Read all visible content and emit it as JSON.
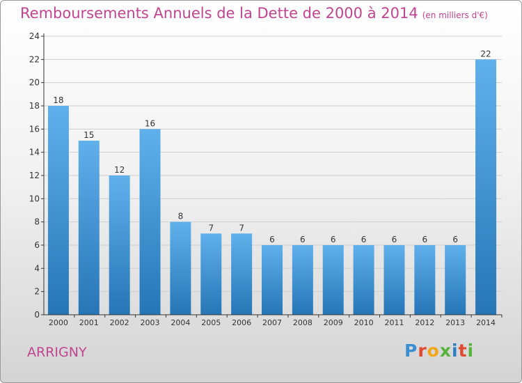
{
  "header": {
    "title": "Remboursements Annuels de la Dette de 2000 à 2014",
    "subtitle": "(en milliers d'€)"
  },
  "footer": {
    "commune": "ARRIGNY",
    "logo_text": "Proxiti",
    "logo_colors": [
      "#3b8fd1",
      "#e2472f",
      "#f2a51a",
      "#57b33c",
      "#2b7ec4",
      "#e2472f",
      "#57b33c"
    ]
  },
  "colors": {
    "title": "#c0448f",
    "bar_top": "#5fb0eb",
    "bar_bottom": "#2676b6",
    "grid": "#cfcfcf",
    "axis": "#333333"
  },
  "chart_data": {
    "type": "bar",
    "categories": [
      "2000",
      "2001",
      "2002",
      "2003",
      "2004",
      "2005",
      "2006",
      "2007",
      "2008",
      "2009",
      "2010",
      "2011",
      "2012",
      "2013",
      "2014"
    ],
    "values": [
      18,
      15,
      12,
      16,
      8,
      7,
      7,
      6,
      6,
      6,
      6,
      6,
      6,
      6,
      22
    ],
    "data_labels": [
      "18",
      "15",
      "12",
      "16",
      "8",
      "7",
      "7",
      "6",
      "6",
      "6",
      "6",
      "6",
      "6",
      "6",
      "22"
    ],
    "ylim": [
      0,
      24
    ],
    "yticks": [
      0,
      2,
      4,
      6,
      8,
      10,
      12,
      14,
      16,
      18,
      20,
      22,
      24
    ],
    "ytick_labels": [
      "0",
      "2",
      "4",
      "6",
      "8",
      "10",
      "12",
      "14",
      "16",
      "18",
      "20",
      "22",
      "24"
    ],
    "grid": true,
    "xlabel": "",
    "ylabel": ""
  }
}
